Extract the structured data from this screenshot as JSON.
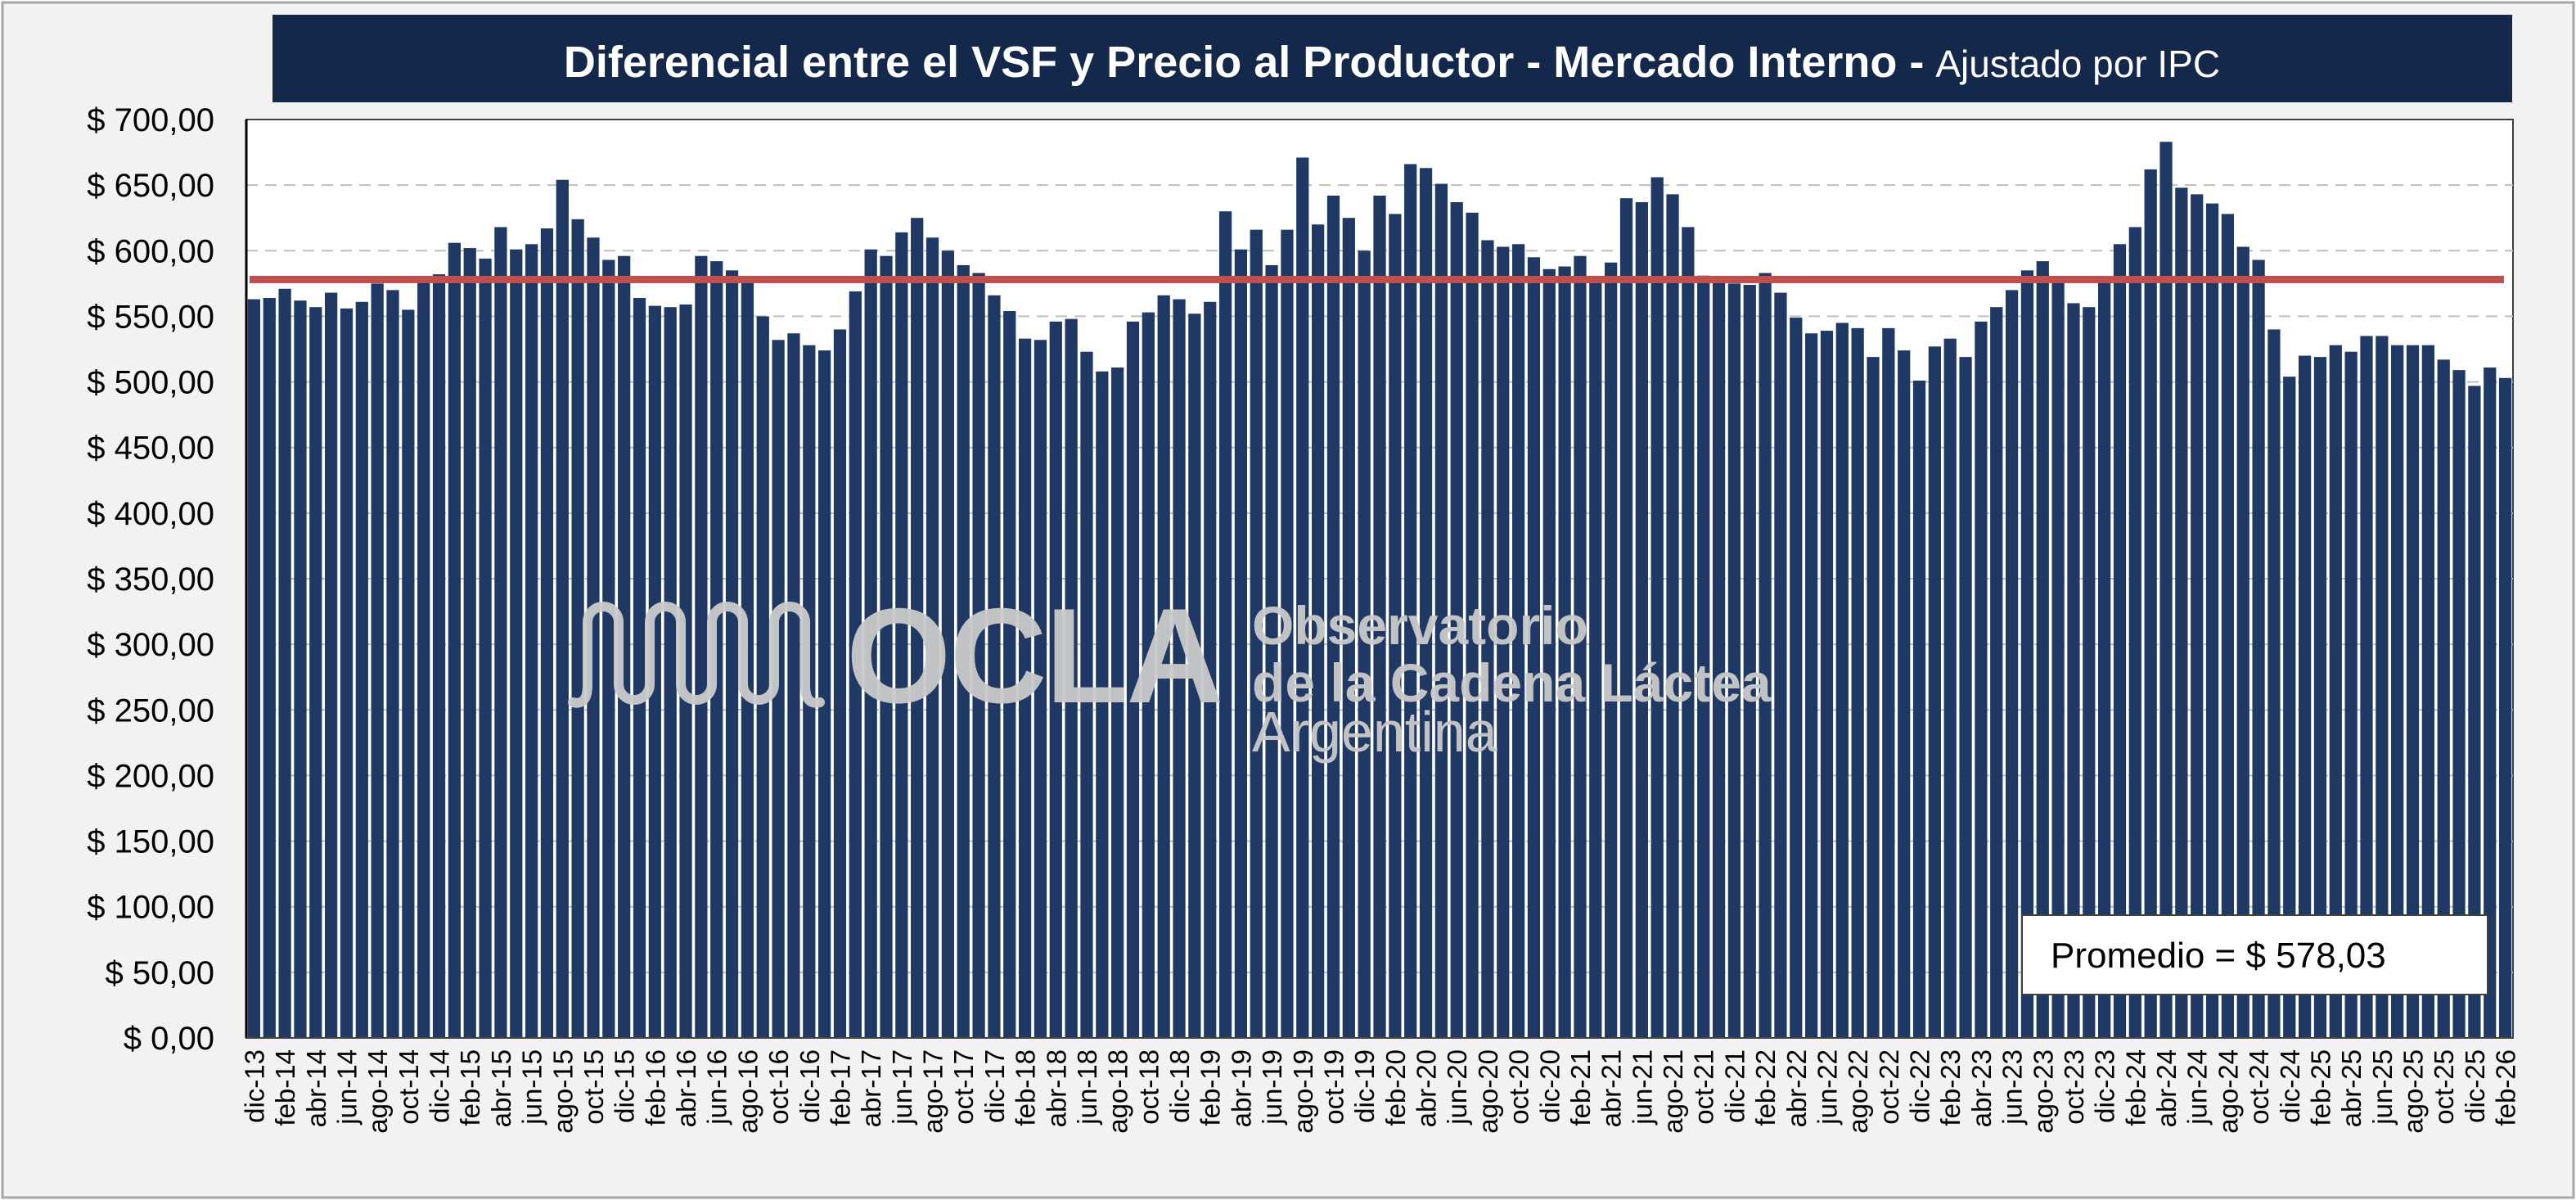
{
  "chart_data": {
    "type": "bar",
    "title": "Diferencial entre el VSF y Precio al Productor - Mercado Interno -",
    "subtitle": "Ajustado por IPC",
    "ylim": [
      0,
      700
    ],
    "grid": true,
    "y_tick_labels": [
      "$ 0,00",
      "$ 50,00",
      "$ 100,00",
      "$ 150,00",
      "$ 200,00",
      "$ 250,00",
      "$ 300,00",
      "$ 350,00",
      "$ 400,00",
      "$ 450,00",
      "$ 500,00",
      "$ 550,00",
      "$ 600,00",
      "$ 650,00",
      "$ 700,00"
    ],
    "x_tick_labels": [
      "dic-13",
      "feb-14",
      "abr-14",
      "jun-14",
      "ago-14",
      "oct-14",
      "dic-14",
      "feb-15",
      "abr-15",
      "jun-15",
      "ago-15",
      "oct-15",
      "dic-15",
      "feb-16",
      "abr-16",
      "jun-16",
      "ago-16",
      "oct-16",
      "dic-16",
      "feb-17",
      "abr-17",
      "jun-17",
      "ago-17",
      "oct-17",
      "dic-17",
      "feb-18",
      "abr-18",
      "jun-18",
      "ago-18",
      "oct-18",
      "dic-18",
      "feb-19",
      "abr-19",
      "jun-19",
      "ago-19",
      "oct-19",
      "dic-19",
      "feb-20",
      "abr-20",
      "jun-20",
      "ago-20",
      "oct-20",
      "dic-20",
      "feb-21",
      "abr-21",
      "jun-21",
      "ago-21",
      "oct-21",
      "dic-21",
      "feb-22",
      "abr-22",
      "jun-22",
      "ago-22",
      "oct-22",
      "dic-22",
      "feb-23",
      "abr-23",
      "jun-23",
      "ago-23",
      "oct-23",
      "dic-23",
      "feb-24",
      "abr-24",
      "jun-24",
      "ago-24",
      "oct-24",
      "dic-24",
      "feb-25",
      "abr-25",
      "jun-25",
      "ago-25",
      "oct-25",
      "dic-25",
      "feb-26"
    ],
    "values": [
      563,
      564,
      571,
      562,
      557,
      568,
      556,
      561,
      575,
      570,
      555,
      577,
      582,
      606,
      602,
      594,
      618,
      601,
      605,
      617,
      654,
      624,
      610,
      593,
      596,
      564,
      558,
      557,
      559,
      596,
      592,
      585,
      578,
      550,
      532,
      537,
      528,
      524,
      540,
      569,
      601,
      596,
      614,
      625,
      610,
      600,
      589,
      583,
      566,
      554,
      533,
      532,
      546,
      548,
      523,
      508,
      511,
      546,
      553,
      566,
      563,
      552,
      561,
      630,
      601,
      616,
      589,
      616,
      671,
      620,
      642,
      625,
      600,
      642,
      628,
      666,
      663,
      651,
      637,
      629,
      608,
      603,
      605,
      595,
      586,
      588,
      596,
      576,
      591,
      640,
      637,
      656,
      643,
      618,
      581,
      579,
      575,
      574,
      583,
      568,
      549,
      537,
      539,
      545,
      541,
      519,
      541,
      524,
      501,
      527,
      533,
      519,
      546,
      557,
      570,
      585,
      592,
      577,
      560,
      557,
      577,
      605,
      618,
      662,
      683,
      648,
      643,
      636,
      628,
      603,
      593,
      540,
      504,
      520,
      519,
      528,
      523,
      535,
      535,
      528,
      528,
      528,
      517,
      509,
      497,
      511,
      503
    ],
    "reference_line": {
      "label": "Promedio = $ 578,03",
      "value": 578.03
    },
    "colors": {
      "bar": "#1f3864",
      "reference_line": "#c0504d",
      "gridline": "#bfbfbf",
      "title_banner": "#14284b"
    }
  },
  "logo": {
    "wordmark": "OCLA",
    "line1": "Observatorio",
    "line2": "de la Cadena Láctea",
    "line3": "Argentina"
  }
}
